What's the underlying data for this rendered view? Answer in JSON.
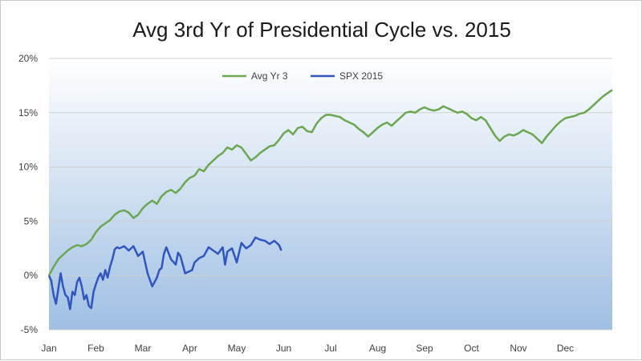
{
  "chart_data": {
    "type": "line",
    "title": "Avg 3rd Yr of Presidential Cycle vs. 2015",
    "xlabel": "",
    "ylabel": "",
    "x_tick_labels": [
      "Jan",
      "Feb",
      "Mar",
      "Apr",
      "May",
      "Jun",
      "Jul",
      "Aug",
      "Sep",
      "Oct",
      "Nov",
      "Dec"
    ],
    "y_tick_labels": [
      "20%",
      "15%",
      "10%",
      "5%",
      "0%",
      "-5%"
    ],
    "y_ticks": [
      20,
      15,
      10,
      5,
      0,
      -5
    ],
    "ylim": [
      -5,
      20
    ],
    "xlim": [
      0,
      12
    ],
    "grid": true,
    "legend_position": "top-center",
    "series": [
      {
        "name": "Avg Yr 3",
        "color": "#6aa84f",
        "x": [
          0,
          0.1,
          0.2,
          0.3,
          0.4,
          0.5,
          0.6,
          0.7,
          0.8,
          0.9,
          1.0,
          1.1,
          1.2,
          1.3,
          1.4,
          1.5,
          1.6,
          1.7,
          1.8,
          1.9,
          2.0,
          2.1,
          2.2,
          2.3,
          2.4,
          2.5,
          2.6,
          2.7,
          2.8,
          2.9,
          3.0,
          3.1,
          3.2,
          3.3,
          3.4,
          3.5,
          3.6,
          3.7,
          3.8,
          3.9,
          4.0,
          4.1,
          4.2,
          4.3,
          4.4,
          4.5,
          4.6,
          4.7,
          4.8,
          4.9,
          5.0,
          5.1,
          5.2,
          5.3,
          5.4,
          5.5,
          5.6,
          5.7,
          5.8,
          5.9,
          6.0,
          6.1,
          6.2,
          6.3,
          6.4,
          6.5,
          6.6,
          6.7,
          6.8,
          6.9,
          7.0,
          7.1,
          7.2,
          7.3,
          7.4,
          7.5,
          7.6,
          7.7,
          7.8,
          7.9,
          8.0,
          8.1,
          8.2,
          8.3,
          8.4,
          8.5,
          8.6,
          8.7,
          8.8,
          8.9,
          9.0,
          9.1,
          9.2,
          9.3,
          9.4,
          9.5,
          9.6,
          9.7,
          9.8,
          9.9,
          10.0,
          10.1,
          10.2,
          10.3,
          10.4,
          10.5,
          10.6,
          10.7,
          10.8,
          10.9,
          11.0,
          11.1,
          11.2,
          11.3,
          11.4,
          11.5,
          11.6,
          11.7,
          11.8,
          11.9,
          12.0
        ],
        "values": [
          0,
          0.8,
          1.5,
          1.9,
          2.3,
          2.6,
          2.8,
          2.7,
          2.9,
          3.3,
          4.0,
          4.5,
          4.8,
          5.1,
          5.6,
          5.9,
          6.0,
          5.8,
          5.3,
          5.6,
          6.2,
          6.6,
          6.9,
          6.6,
          7.3,
          7.7,
          7.9,
          7.6,
          8.0,
          8.6,
          9.0,
          9.2,
          9.8,
          9.6,
          10.2,
          10.6,
          11.0,
          11.3,
          11.8,
          11.6,
          12.0,
          11.8,
          11.2,
          10.6,
          10.9,
          11.3,
          11.6,
          11.9,
          12.0,
          12.5,
          13.1,
          13.4,
          13.0,
          13.6,
          13.7,
          13.3,
          13.2,
          14.0,
          14.5,
          14.8,
          14.8,
          14.7,
          14.6,
          14.3,
          14.1,
          13.9,
          13.5,
          13.2,
          12.8,
          13.2,
          13.6,
          13.9,
          14.1,
          13.8,
          14.2,
          14.6,
          15.0,
          15.1,
          15.0,
          15.3,
          15.5,
          15.3,
          15.2,
          15.3,
          15.6,
          15.4,
          15.2,
          15.0,
          15.1,
          14.9,
          14.5,
          14.3,
          14.6,
          14.3,
          13.6,
          12.9,
          12.4,
          12.8,
          13.0,
          12.9,
          13.1,
          13.4,
          13.2,
          13.0,
          12.6,
          12.2,
          12.8,
          13.3,
          13.8,
          14.2,
          14.5,
          14.6,
          14.7,
          14.9,
          15.0,
          15.3,
          15.7,
          16.1,
          16.5,
          16.8,
          17.1
        ]
      },
      {
        "name": "SPX 2015",
        "color": "#2f55c0",
        "x": [
          0,
          0.05,
          0.1,
          0.15,
          0.2,
          0.25,
          0.3,
          0.35,
          0.4,
          0.45,
          0.5,
          0.55,
          0.6,
          0.65,
          0.7,
          0.75,
          0.8,
          0.85,
          0.9,
          0.95,
          1.0,
          1.05,
          1.1,
          1.15,
          1.2,
          1.25,
          1.3,
          1.35,
          1.4,
          1.45,
          1.5,
          1.6,
          1.7,
          1.8,
          1.9,
          2.0,
          2.05,
          2.1,
          2.2,
          2.3,
          2.35,
          2.4,
          2.45,
          2.5,
          2.6,
          2.7,
          2.75,
          2.8,
          2.9,
          3.0,
          3.05,
          3.1,
          3.2,
          3.3,
          3.4,
          3.5,
          3.6,
          3.7,
          3.75,
          3.8,
          3.9,
          4.0,
          4.1,
          4.2,
          4.3,
          4.4,
          4.5,
          4.6,
          4.7,
          4.8,
          4.9,
          4.95
        ],
        "values": [
          0,
          -0.5,
          -1.8,
          -2.6,
          -1.2,
          0.2,
          -1.0,
          -1.8,
          -2.0,
          -3.1,
          -1.5,
          -1.8,
          -0.6,
          -0.2,
          -1.0,
          -2.2,
          -1.8,
          -2.8,
          -3.0,
          -1.5,
          -0.8,
          -0.2,
          0.2,
          -0.4,
          0.5,
          -0.2,
          0.8,
          1.5,
          2.4,
          2.6,
          2.5,
          2.7,
          2.3,
          2.7,
          1.8,
          2.2,
          1.2,
          0.2,
          -1.0,
          -0.2,
          0.5,
          0.7,
          2.0,
          2.6,
          1.5,
          1.0,
          2.1,
          1.8,
          0.2,
          0.4,
          0.5,
          1.2,
          1.6,
          1.8,
          2.6,
          2.3,
          2.0,
          2.6,
          1.0,
          2.2,
          2.5,
          1.2,
          3.0,
          2.5,
          2.8,
          3.5,
          3.3,
          3.2,
          2.9,
          3.2,
          2.8,
          2.3
        ]
      }
    ]
  }
}
